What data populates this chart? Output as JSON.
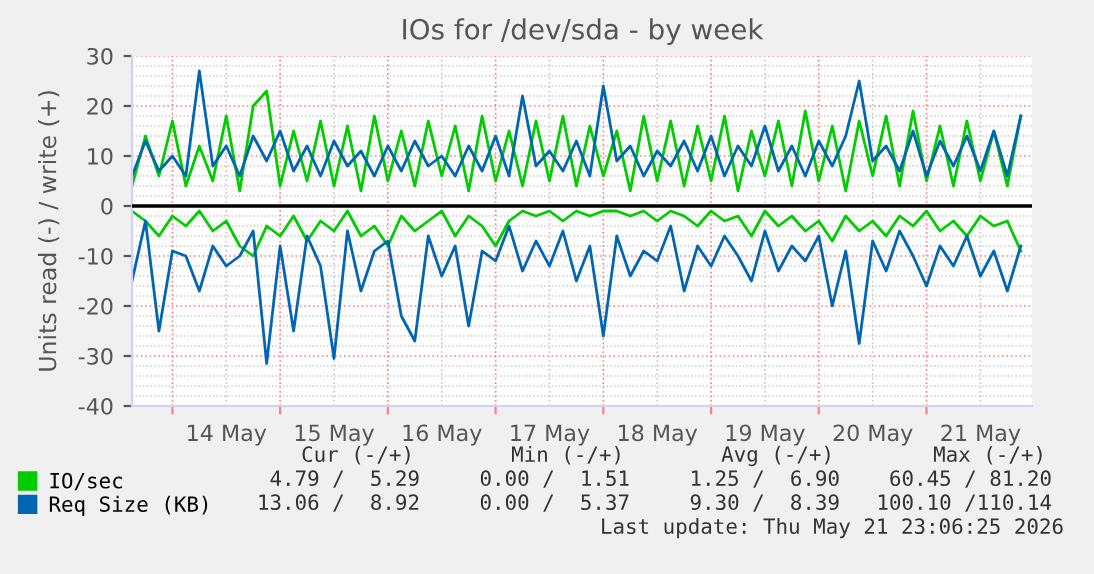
{
  "chart_data": {
    "type": "line",
    "title": "IOs for /dev/sda - by week",
    "ylabel": "Units read (-) / write (+)",
    "x": [
      "2026-05-13T15:00",
      "2026-05-13T18:00",
      "2026-05-13T21:00",
      "2026-05-14T00:00",
      "2026-05-14T03:00",
      "2026-05-14T06:00",
      "2026-05-14T09:00",
      "2026-05-14T12:00",
      "2026-05-14T15:00",
      "2026-05-14T18:00",
      "2026-05-14T21:00",
      "2026-05-15T00:00",
      "2026-05-15T03:00",
      "2026-05-15T06:00",
      "2026-05-15T09:00",
      "2026-05-15T12:00",
      "2026-05-15T15:00",
      "2026-05-15T18:00",
      "2026-05-15T21:00",
      "2026-05-16T00:00",
      "2026-05-16T03:00",
      "2026-05-16T06:00",
      "2026-05-16T09:00",
      "2026-05-16T12:00",
      "2026-05-16T15:00",
      "2026-05-16T18:00",
      "2026-05-16T21:00",
      "2026-05-17T00:00",
      "2026-05-17T03:00",
      "2026-05-17T06:00",
      "2026-05-17T09:00",
      "2026-05-17T12:00",
      "2026-05-17T15:00",
      "2026-05-17T18:00",
      "2026-05-17T21:00",
      "2026-05-18T00:00",
      "2026-05-18T03:00",
      "2026-05-18T06:00",
      "2026-05-18T09:00",
      "2026-05-18T12:00",
      "2026-05-18T15:00",
      "2026-05-18T18:00",
      "2026-05-18T21:00",
      "2026-05-19T00:00",
      "2026-05-19T03:00",
      "2026-05-19T06:00",
      "2026-05-19T09:00",
      "2026-05-19T12:00",
      "2026-05-19T15:00",
      "2026-05-19T18:00",
      "2026-05-19T21:00",
      "2026-05-20T00:00",
      "2026-05-20T03:00",
      "2026-05-20T06:00",
      "2026-05-20T09:00",
      "2026-05-20T12:00",
      "2026-05-20T15:00",
      "2026-05-20T18:00",
      "2026-05-20T21:00",
      "2026-05-21T00:00",
      "2026-05-21T03:00",
      "2026-05-21T06:00",
      "2026-05-21T09:00",
      "2026-05-21T12:00",
      "2026-05-21T15:00",
      "2026-05-21T18:00",
      "2026-05-21T21:00"
    ],
    "series": [
      {
        "name": "IO/sec",
        "color": "#00cc00",
        "values": [
          4,
          14,
          6,
          17,
          4,
          12,
          5,
          18,
          3,
          20,
          23,
          4,
          15,
          5,
          17,
          4,
          16,
          3,
          18,
          5,
          15,
          4,
          17,
          6,
          16,
          3,
          18,
          5,
          15,
          4,
          17,
          5,
          18,
          4,
          16,
          6,
          15,
          3,
          18,
          5,
          17,
          4,
          16,
          5,
          18,
          3,
          15,
          6,
          17,
          4,
          19,
          5,
          16,
          3,
          17,
          6,
          18,
          4,
          19,
          5,
          16,
          4,
          17,
          5,
          15,
          4,
          18
        ]
      },
      {
        "name": "Req Size (KB)",
        "color": "#0066b3",
        "values": [
          6,
          13,
          7,
          10,
          6,
          27,
          8,
          12,
          6,
          14,
          9,
          15,
          7,
          12,
          6,
          13,
          8,
          11,
          6,
          12,
          7,
          13,
          8,
          10,
          6,
          12,
          7,
          14,
          6,
          22,
          8,
          11,
          7,
          13,
          6,
          24,
          9,
          12,
          6,
          11,
          8,
          13,
          7,
          14,
          6,
          12,
          8,
          16,
          7,
          12,
          6,
          13,
          8,
          14,
          25,
          9,
          12,
          7,
          15,
          6,
          13,
          8,
          14,
          7,
          15,
          6,
          18
        ]
      },
      {
        "color": "#00cc00",
        "values": [
          -1,
          -3,
          -6,
          -2,
          -4,
          -1,
          -5,
          -3,
          -8,
          -10,
          -4,
          -6,
          -2,
          -7,
          -3,
          -5,
          -1,
          -6,
          -4,
          -8,
          -2,
          -5,
          -3,
          -1,
          -6,
          -2,
          -4,
          -8,
          -3,
          -1,
          -2,
          -1,
          -3,
          -1,
          -2,
          -1,
          -1,
          -2,
          -1,
          -3,
          -1,
          -2,
          -4,
          -1,
          -3,
          -2,
          -6,
          -1,
          -4,
          -2,
          -5,
          -3,
          -7,
          -2,
          -5,
          -3,
          -6,
          -2,
          -4,
          -1,
          -5,
          -3,
          -6,
          -2,
          -4,
          -3,
          -9
        ]
      },
      {
        "color": "#0066b3",
        "values": [
          -15,
          -3,
          -25,
          -9,
          -10,
          -17,
          -8,
          -12,
          -10,
          -5,
          -31.5,
          -8,
          -25,
          -6,
          -12,
          -30.5,
          -5,
          -17,
          -9,
          -7,
          -22,
          -27,
          -6,
          -14,
          -8,
          -24,
          -9,
          -11,
          -4,
          -13,
          -7,
          -12,
          -5,
          -15,
          -8,
          -26,
          -6,
          -14,
          -9,
          -11,
          -4,
          -17,
          -8,
          -12,
          -6,
          -10,
          -15,
          -5,
          -13,
          -8,
          -11,
          -6,
          -20,
          -9,
          -27.5,
          -7,
          -13,
          -5,
          -10,
          -16,
          -8,
          -12,
          -6,
          -14,
          -9,
          -17,
          -8
        ]
      }
    ],
    "xlim": [
      "2026-05-13T15:00",
      "2026-05-21T23:30"
    ],
    "xticks": [
      {
        "value": "2026-05-14T00:00",
        "label": null
      },
      {
        "value": "2026-05-14T12:00",
        "label": "14 May"
      },
      {
        "value": "2026-05-15T00:00",
        "label": null
      },
      {
        "value": "2026-05-15T12:00",
        "label": "15 May"
      },
      {
        "value": "2026-05-16T00:00",
        "label": null
      },
      {
        "value": "2026-05-16T12:00",
        "label": "16 May"
      },
      {
        "value": "2026-05-17T00:00",
        "label": null
      },
      {
        "value": "2026-05-17T12:00",
        "label": "17 May"
      },
      {
        "value": "2026-05-18T00:00",
        "label": null
      },
      {
        "value": "2026-05-18T12:00",
        "label": "18 May"
      },
      {
        "value": "2026-05-19T00:00",
        "label": null
      },
      {
        "value": "2026-05-19T12:00",
        "label": "19 May"
      },
      {
        "value": "2026-05-20T00:00",
        "label": null
      },
      {
        "value": "2026-05-20T12:00",
        "label": "20 May"
      },
      {
        "value": "2026-05-21T00:00",
        "label": null
      },
      {
        "value": "2026-05-21T12:00",
        "label": "21 May"
      }
    ],
    "ylim": [
      -40,
      30
    ],
    "yticks": [
      -40,
      -30,
      -20,
      -10,
      0,
      10,
      20,
      30
    ],
    "ref_lines": [
      {
        "axis": "y",
        "value": 0,
        "color": "#000000"
      }
    ],
    "grid": true,
    "legend": "bottom",
    "marker": "none",
    "line_style": "solid",
    "annotations": [
      "Cur (-/+)",
      "Min (-/+)",
      "Avg (-/+)",
      "Max (-/+)",
      "4.79 /  5.29",
      "0.00 /  1.51",
      "1.25 /  6.90",
      "60.45 / 81.20",
      "13.06 /  8.92",
      "0.00 /  5.37",
      "9.30 /  8.39",
      "100.10 /110.14",
      "Last update: Thu May 21 23:06:25 2026"
    ]
  }
}
